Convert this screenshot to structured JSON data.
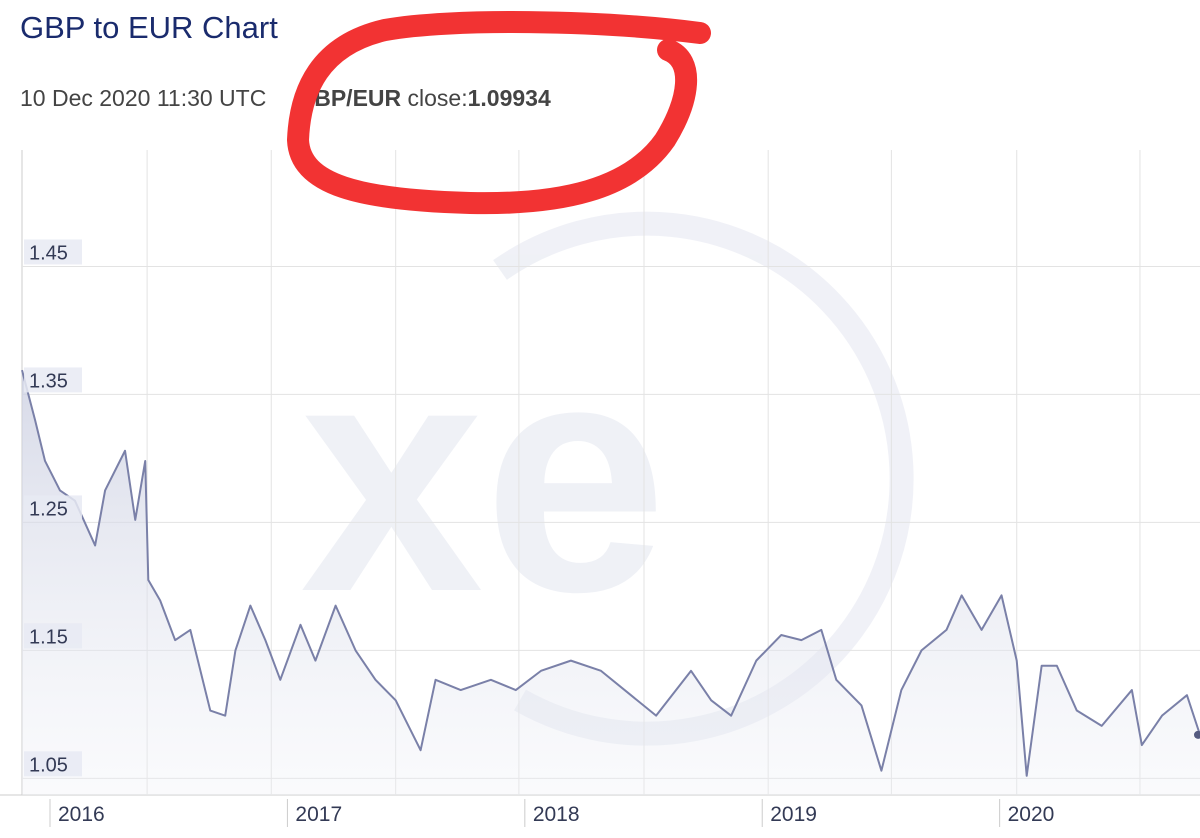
{
  "chart_data": {
    "type": "area",
    "title": "GBP to EUR Chart",
    "subtitle": {
      "date": "10 Dec 2020 11:30 UTC",
      "pair": "GBP/EUR",
      "close_label": "close:",
      "close_value": 1.09934
    },
    "x": [
      2015.882,
      2015.937,
      2015.979,
      2016.042,
      2016.105,
      2016.19,
      2016.232,
      2016.316,
      2016.359,
      2016.401,
      2016.414,
      2016.464,
      2016.527,
      2016.591,
      2016.675,
      2016.738,
      2016.781,
      2016.844,
      2016.907,
      2016.97,
      2017.055,
      2017.118,
      2017.203,
      2017.287,
      2017.371,
      2017.456,
      2017.561,
      2017.624,
      2017.73,
      2017.857,
      2017.962,
      2018.068,
      2018.194,
      2018.321,
      2018.447,
      2018.553,
      2018.7,
      2018.785,
      2018.869,
      2018.975,
      2019.08,
      2019.165,
      2019.249,
      2019.312,
      2019.418,
      2019.502,
      2019.586,
      2019.671,
      2019.776,
      2019.84,
      2019.924,
      2020.008,
      2020.072,
      2020.114,
      2020.177,
      2020.241,
      2020.325,
      2020.43,
      2020.557,
      2020.599,
      2020.684,
      2020.789,
      2020.844
    ],
    "series": [
      {
        "name": "GBP/EUR",
        "color": "#7a80a8",
        "values": [
          1.369,
          1.33,
          1.298,
          1.275,
          1.267,
          1.232,
          1.275,
          1.306,
          1.252,
          1.298,
          1.205,
          1.189,
          1.158,
          1.166,
          1.103,
          1.099,
          1.15,
          1.185,
          1.158,
          1.127,
          1.17,
          1.142,
          1.185,
          1.15,
          1.127,
          1.111,
          1.072,
          1.127,
          1.119,
          1.127,
          1.119,
          1.134,
          1.142,
          1.134,
          1.115,
          1.099,
          1.134,
          1.111,
          1.099,
          1.142,
          1.162,
          1.158,
          1.166,
          1.127,
          1.107,
          1.056,
          1.119,
          1.15,
          1.166,
          1.193,
          1.166,
          1.193,
          1.142,
          1.052,
          1.138,
          1.138,
          1.103,
          1.091,
          1.119,
          1.076,
          1.099,
          1.115,
          1.084
        ]
      }
    ],
    "xlim": [
      2015.882,
      2020.844
    ],
    "xticks": [
      2016,
      2017,
      2018,
      2019,
      2020
    ],
    "xgrid": [
      2016.409,
      2016.932,
      2017.456,
      2017.975,
      2018.502,
      2019.025,
      2019.544,
      2020.072,
      2020.591
    ],
    "ylim": [
      1.037,
      1.541
    ],
    "yticks": [
      1.05,
      1.15,
      1.25,
      1.35,
      1.45
    ],
    "grid": true
  }
}
